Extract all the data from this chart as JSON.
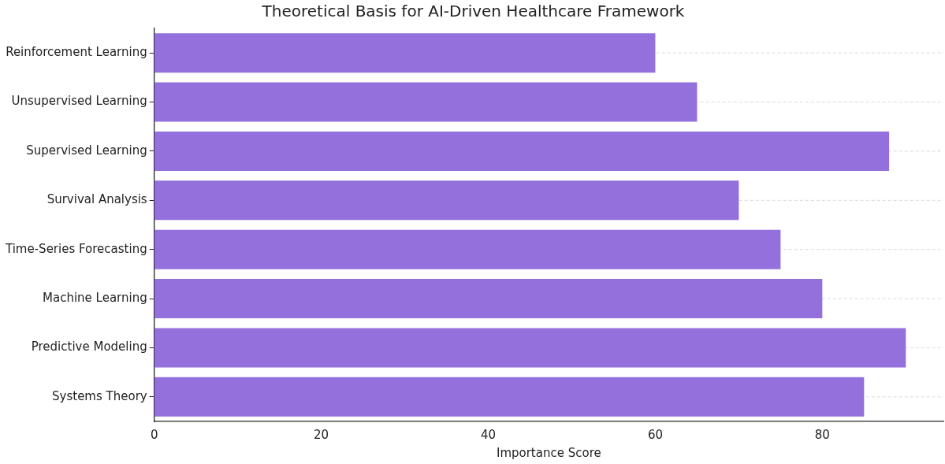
{
  "chart_data": {
    "type": "bar",
    "orientation": "horizontal",
    "title": "Theoretical Basis for AI-Driven Healthcare Framework",
    "xlabel": "Importance Score",
    "categories": [
      "Reinforcement Learning",
      "Unsupervised Learning",
      "Supervised Learning",
      "Survival Analysis",
      "Time-Series Forecasting",
      "Machine Learning",
      "Predictive Modeling",
      "Systems Theory"
    ],
    "values": [
      60,
      65,
      88,
      70,
      75,
      80,
      90,
      85
    ],
    "color": "#9370db",
    "xlim": [
      0,
      94.5
    ],
    "xticks": [
      0,
      20,
      40,
      60,
      80
    ],
    "grid": "y"
  }
}
